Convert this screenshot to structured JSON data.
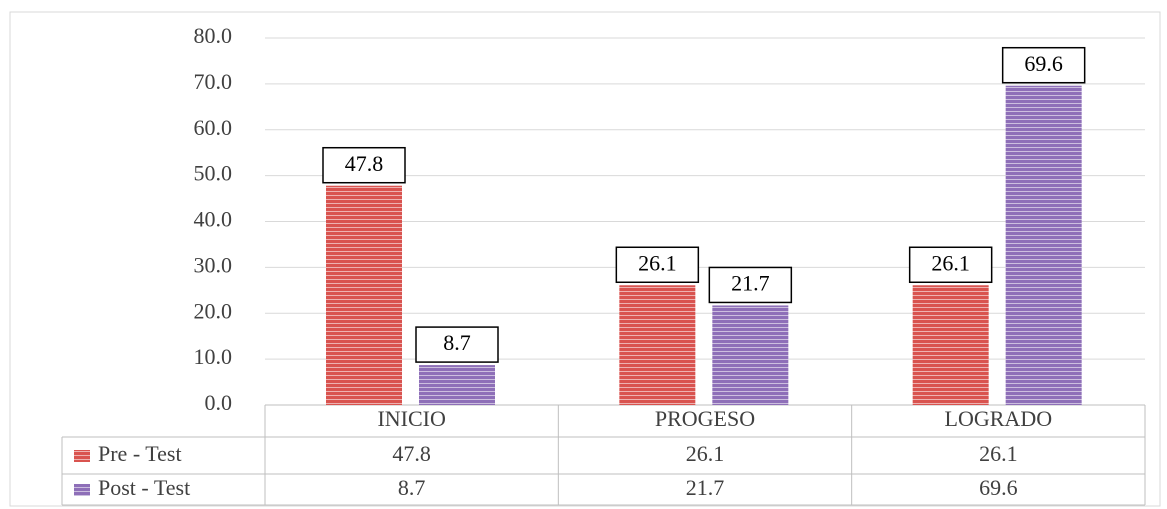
{
  "chart_data": {
    "type": "bar",
    "categories": [
      "INICIO",
      "PROGESO",
      "LOGRADO"
    ],
    "series": [
      {
        "name": "Pre - Test",
        "color": "#d9534f",
        "values": [
          47.8,
          26.1,
          26.1
        ]
      },
      {
        "name": "Post - Test",
        "color": "#8e6fb8",
        "values": [
          8.7,
          21.7,
          69.6
        ]
      }
    ],
    "ylim": [
      0,
      80
    ],
    "yticks": [
      {
        "value": 0,
        "label": "0.0"
      },
      {
        "value": 10,
        "label": "10.0"
      },
      {
        "value": 20,
        "label": "20.0"
      },
      {
        "value": 30,
        "label": "30.0"
      },
      {
        "value": 40,
        "label": "40.0"
      },
      {
        "value": 50,
        "label": "50.0"
      },
      {
        "value": 60,
        "label": "60.0"
      },
      {
        "value": 70,
        "label": "70.0"
      },
      {
        "value": 80,
        "label": "80.0"
      }
    ],
    "grid": true
  }
}
